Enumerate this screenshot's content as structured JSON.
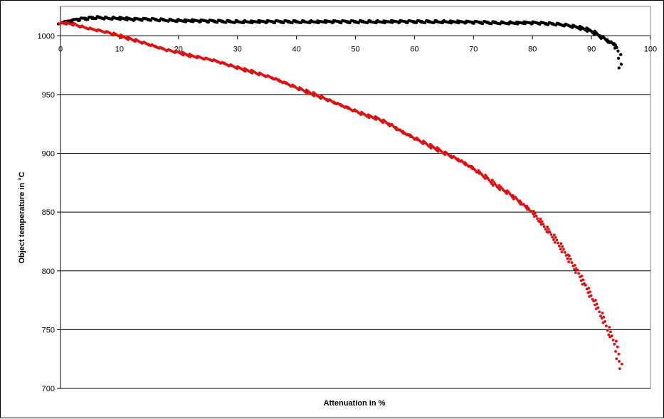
{
  "chart_data": {
    "type": "scatter",
    "title": "",
    "xlabel": "Attenuation in %",
    "ylabel": "Object temperature in °C",
    "xlim": [
      0,
      100
    ],
    "ylim": [
      700,
      1025
    ],
    "x_ticks": [
      0,
      10,
      20,
      30,
      40,
      50,
      60,
      70,
      80,
      90,
      100
    ],
    "y_ticks": [
      700,
      750,
      800,
      850,
      900,
      950,
      1000
    ],
    "grid": "horizontal",
    "legend": "none",
    "series": [
      {
        "color": "#000000",
        "points": [
          [
            0,
            1011
          ],
          [
            1,
            1012
          ],
          [
            2,
            1013
          ],
          [
            3,
            1014
          ],
          [
            4,
            1014.5
          ],
          [
            5,
            1015
          ],
          [
            6,
            1015.5
          ],
          [
            7,
            1015.5
          ],
          [
            8,
            1015
          ],
          [
            10,
            1015
          ],
          [
            12,
            1014
          ],
          [
            15,
            1014
          ],
          [
            20,
            1013
          ],
          [
            25,
            1012.5
          ],
          [
            30,
            1012
          ],
          [
            35,
            1012
          ],
          [
            40,
            1012
          ],
          [
            45,
            1012
          ],
          [
            50,
            1012
          ],
          [
            55,
            1012
          ],
          [
            60,
            1012
          ],
          [
            65,
            1012
          ],
          [
            70,
            1011.5
          ],
          [
            75,
            1011
          ],
          [
            80,
            1011
          ],
          [
            82,
            1010.5
          ],
          [
            84,
            1010
          ],
          [
            86,
            1009
          ],
          [
            88,
            1007
          ],
          [
            90,
            1004
          ],
          [
            91,
            1001
          ],
          [
            92,
            998
          ],
          [
            93,
            995
          ],
          [
            94,
            992
          ],
          [
            94.5,
            988
          ],
          [
            94.6,
            984
          ],
          [
            94.7,
            980
          ],
          [
            94.8,
            976
          ],
          [
            94.9,
            972
          ]
        ]
      },
      {
        "color": "#dd1111",
        "points": [
          [
            0,
            1011
          ],
          [
            2,
            1010
          ],
          [
            4,
            1007
          ],
          [
            6,
            1005
          ],
          [
            8,
            1003
          ],
          [
            10,
            1000
          ],
          [
            12,
            997
          ],
          [
            14,
            994
          ],
          [
            16,
            991
          ],
          [
            18,
            988
          ],
          [
            20,
            986
          ],
          [
            22,
            983
          ],
          [
            24,
            981
          ],
          [
            26,
            979
          ],
          [
            28,
            976
          ],
          [
            30,
            973
          ],
          [
            32,
            970
          ],
          [
            34,
            967
          ],
          [
            36,
            964
          ],
          [
            38,
            960
          ],
          [
            40,
            956
          ],
          [
            42,
            952
          ],
          [
            44,
            948
          ],
          [
            46,
            944
          ],
          [
            48,
            940
          ],
          [
            50,
            936
          ],
          [
            52,
            932
          ],
          [
            54,
            929
          ],
          [
            56,
            924
          ],
          [
            58,
            918
          ],
          [
            60,
            913
          ],
          [
            62,
            908
          ],
          [
            64,
            903
          ],
          [
            66,
            898
          ],
          [
            68,
            893
          ],
          [
            70,
            887
          ],
          [
            72,
            880
          ],
          [
            74,
            872
          ],
          [
            76,
            866
          ],
          [
            78,
            858
          ],
          [
            80,
            850
          ],
          [
            82,
            838
          ],
          [
            84,
            826
          ],
          [
            86,
            812
          ],
          [
            88,
            796
          ],
          [
            90,
            778
          ],
          [
            91,
            769
          ],
          [
            92,
            759
          ],
          [
            93,
            748
          ],
          [
            94,
            738
          ],
          [
            94.5,
            729
          ],
          [
            94.7,
            723
          ],
          [
            94.9,
            717
          ]
        ]
      }
    ]
  }
}
